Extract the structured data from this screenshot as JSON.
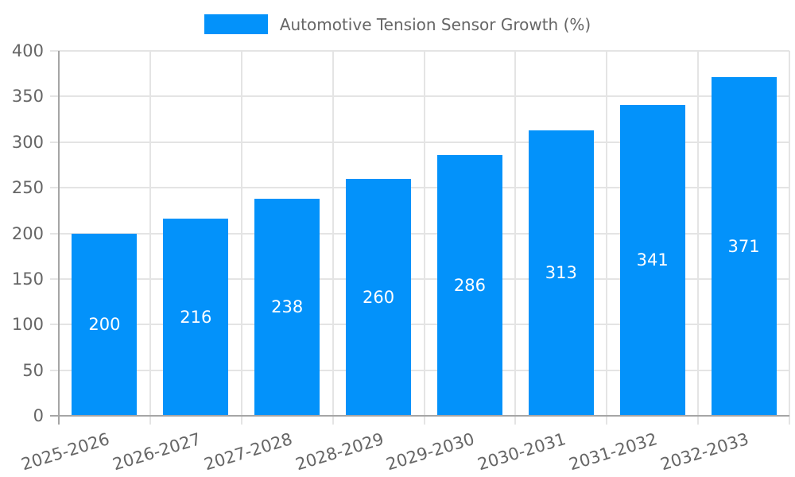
{
  "legend": {
    "label": "Automotive Tension Sensor Growth (%)"
  },
  "chart_data": {
    "type": "bar",
    "title": "",
    "series_name": "Automotive Tension Sensor Growth (%)",
    "categories": [
      "2025-2026",
      "2026-2027",
      "2027-2028",
      "2028-2029",
      "2029-2030",
      "2030-2031",
      "2031-2032",
      "2032-2033"
    ],
    "values": [
      200,
      216,
      238,
      260,
      286,
      313,
      341,
      371
    ],
    "value_labels": [
      "200",
      "216",
      "238",
      "260",
      "286",
      "313",
      "341",
      "371"
    ],
    "xlabel": "",
    "ylabel": "",
    "ylim": [
      0,
      400
    ],
    "yticks": [
      0,
      50,
      100,
      150,
      200,
      250,
      300,
      350,
      400
    ],
    "grid": "on",
    "legend_position": "top",
    "colors": {
      "bar": "#0392fa",
      "value_label": "#ffffff",
      "grid": "#e4e4e4",
      "axis": "#a5a5a5",
      "tick_text": "#666666"
    }
  }
}
